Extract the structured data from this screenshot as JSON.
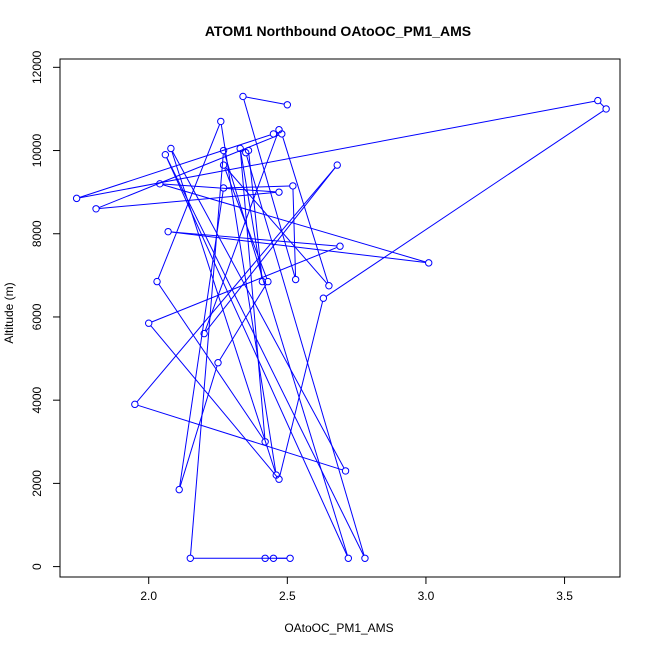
{
  "chart_data": {
    "type": "line",
    "title": "ATOM1 Northbound OAtoOC_PM1_AMS",
    "xlabel": "OAtoOC_PM1_AMS",
    "ylabel": "Altitude (m)",
    "xlim": [
      1.68,
      3.7
    ],
    "ylim": [
      -250,
      12200
    ],
    "xticks": [
      "2.0",
      "2.5",
      "3.0",
      "3.5"
    ],
    "yticks": [
      "0",
      "2000",
      "4000",
      "6000",
      "8000",
      "10000",
      "12000"
    ],
    "xtick_values": [
      2.0,
      2.5,
      3.0,
      3.5
    ],
    "ytick_values": [
      0,
      2000,
      4000,
      6000,
      8000,
      10000,
      12000
    ],
    "series_color": "#0000ff",
    "grid": false,
    "points": [
      [
        2.42,
        200
      ],
      [
        2.45,
        200
      ],
      [
        2.51,
        200
      ],
      [
        2.15,
        200
      ],
      [
        2.27,
        10000
      ],
      [
        2.72,
        200
      ],
      [
        2.06,
        9900
      ],
      [
        2.78,
        200
      ],
      [
        2.35,
        9950
      ],
      [
        2.36,
        10000
      ],
      [
        2.41,
        6850
      ],
      [
        2.33,
        10050
      ],
      [
        2.42,
        3000
      ],
      [
        2.03,
        6850
      ],
      [
        2.26,
        10700
      ],
      [
        2.46,
        2200
      ],
      [
        2.08,
        10050
      ],
      [
        2.71,
        2300
      ],
      [
        1.95,
        3900
      ],
      [
        2.68,
        9650
      ],
      [
        2.2,
        5600
      ],
      [
        2.47,
        10500
      ],
      [
        2.45,
        10400
      ],
      [
        1.74,
        8850
      ],
      [
        3.62,
        11200
      ],
      [
        3.65,
        11000
      ],
      [
        2.63,
        6450
      ],
      [
        2.47,
        2100
      ],
      [
        2.0,
        5850
      ],
      [
        2.69,
        7700
      ],
      [
        2.07,
        8050
      ],
      [
        3.01,
        7300
      ],
      [
        2.04,
        9200
      ],
      [
        2.47,
        9000
      ],
      [
        1.81,
        8600
      ],
      [
        2.48,
        10400
      ],
      [
        2.65,
        6750
      ],
      [
        2.27,
        9650
      ],
      [
        2.43,
        6850
      ],
      [
        2.25,
        4900
      ],
      [
        2.11,
        1850
      ],
      [
        2.27,
        9100
      ],
      [
        2.52,
        9150
      ],
      [
        2.53,
        6900
      ],
      [
        2.34,
        11300
      ],
      [
        2.5,
        11100
      ]
    ]
  }
}
